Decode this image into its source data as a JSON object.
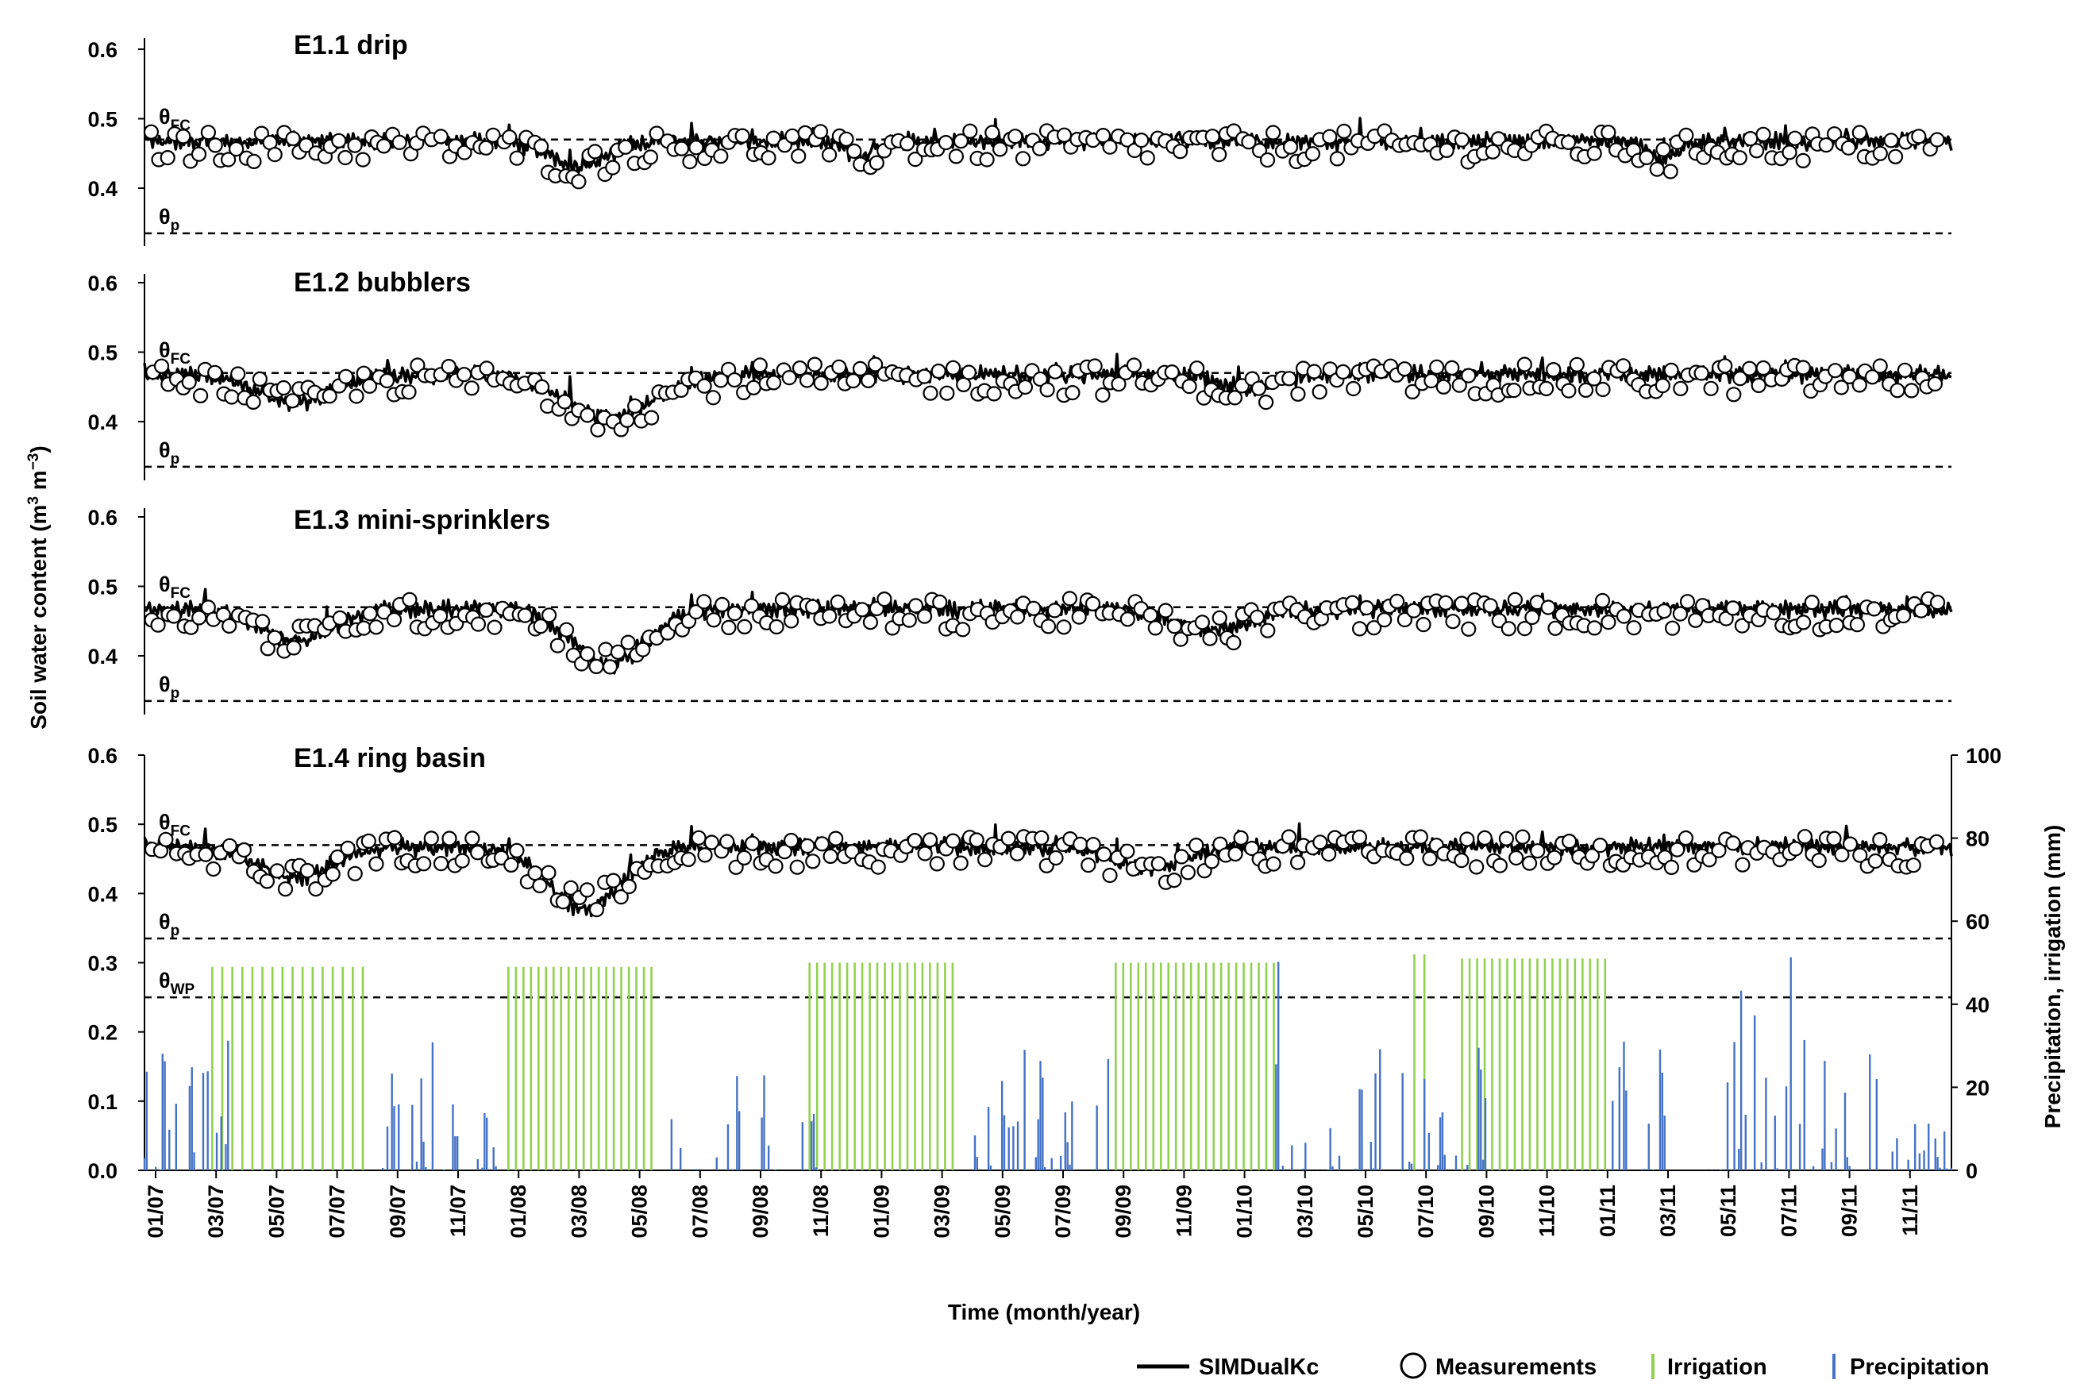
{
  "chart_data": {
    "type": "line",
    "panels": [
      {
        "title": "E1.1 drip",
        "ylim": [
          0.32,
          0.6
        ],
        "yticks": [
          "0.6",
          "0.5",
          "0.4"
        ],
        "levels": [
          {
            "label": "θ",
            "sub": "FC",
            "value": 0.47
          },
          {
            "label": "θ",
            "sub": "p",
            "value": 0.335
          }
        ]
      },
      {
        "title": "E1.2 bubblers",
        "ylim": [
          0.32,
          0.6
        ],
        "yticks": [
          "0.6",
          "0.5",
          "0.4"
        ],
        "levels": [
          {
            "label": "θ",
            "sub": "FC",
            "value": 0.47
          },
          {
            "label": "θ",
            "sub": "p",
            "value": 0.335
          }
        ]
      },
      {
        "title": "E1.3 mini-sprinklers",
        "ylim": [
          0.32,
          0.6
        ],
        "yticks": [
          "0.6",
          "0.5",
          "0.4"
        ],
        "levels": [
          {
            "label": "θ",
            "sub": "FC",
            "value": 0.47
          },
          {
            "label": "θ",
            "sub": "p",
            "value": 0.335
          }
        ]
      },
      {
        "title": "E1.4 ring basin",
        "ylim": [
          0,
          0.6
        ],
        "yticks": [
          "0.6",
          "0.5",
          "0.4",
          "0.3",
          "0.2",
          "0.1",
          "0.0"
        ],
        "y2lim": [
          0,
          100
        ],
        "y2ticks": [
          "100",
          "80",
          "60",
          "40",
          "20",
          "0"
        ],
        "levels": [
          {
            "label": "θ",
            "sub": "FC",
            "value": 0.47
          },
          {
            "label": "θ",
            "sub": "p",
            "value": 0.335
          },
          {
            "label": "θ",
            "sub": "WP",
            "value": 0.25
          }
        ]
      }
    ],
    "x_ticks": [
      "01/07",
      "03/07",
      "05/07",
      "07/07",
      "09/07",
      "11/07",
      "01/08",
      "03/08",
      "05/08",
      "07/08",
      "09/08",
      "11/08",
      "01/09",
      "03/09",
      "05/09",
      "07/09",
      "09/09",
      "11/09",
      "01/10",
      "03/10",
      "05/10",
      "07/10",
      "09/10",
      "11/10",
      "01/11",
      "03/11",
      "05/11",
      "07/11",
      "09/11",
      "11/11"
    ],
    "xlabel": "Time (month/year)",
    "ylabel": "Soil water content (m³ m⁻³)",
    "ylabel_parts": {
      "a": "Soil water content (m",
      "b": "3",
      "c": " m",
      "d": "−3",
      "e": ")"
    },
    "y2label": "Precipitation, irrigation (mm)",
    "x_range_months": [
      0,
      72
    ],
    "series": [
      {
        "name": "SIMDualKc",
        "style": "line",
        "color": "#000000"
      },
      {
        "name": "Measurements",
        "style": "open-circle",
        "color": "#000000"
      },
      {
        "name": "Irrigation",
        "style": "bar",
        "color": "#92d050",
        "units": "mm"
      },
      {
        "name": "Precipitation",
        "style": "bar",
        "color": "#4472c4",
        "units": "mm"
      }
    ],
    "dry_dips": [
      [
        {
          "center": 17.3,
          "width": 1.6,
          "depth": 0.035
        },
        {
          "center": 28.5,
          "width": 0.8,
          "depth": 0.02
        },
        {
          "center": 60.5,
          "width": 0.8,
          "depth": 0.025
        }
      ],
      [
        {
          "center": 6.0,
          "width": 2.0,
          "depth": 0.04
        },
        {
          "center": 18.5,
          "width": 2.5,
          "depth": 0.06
        },
        {
          "center": 44.0,
          "width": 1.5,
          "depth": 0.02
        }
      ],
      [
        {
          "center": 6.0,
          "width": 2.0,
          "depth": 0.045
        },
        {
          "center": 18.5,
          "width": 2.0,
          "depth": 0.08
        },
        {
          "center": 42.5,
          "width": 2.0,
          "depth": 0.03
        }
      ],
      [
        {
          "center": 6.0,
          "width": 2.0,
          "depth": 0.045
        },
        {
          "center": 17.5,
          "width": 2.0,
          "depth": 0.09
        },
        {
          "center": 40.0,
          "width": 2.0,
          "depth": 0.03
        }
      ]
    ],
    "irrigation_periods": [
      {
        "start": 2.7,
        "end": 9.0,
        "interval": 0.4,
        "amount": 49
      },
      {
        "start": 14.5,
        "end": 20.5,
        "interval": 0.3,
        "amount": 49
      },
      {
        "start": 26.5,
        "end": 32.5,
        "interval": 0.3,
        "amount": 50
      },
      {
        "start": 38.7,
        "end": 45.0,
        "interval": 0.3,
        "amount": 50
      },
      {
        "start": 50.6,
        "end": 51.0,
        "interval": 0.4,
        "amount": 52
      },
      {
        "start": 52.5,
        "end": 58.2,
        "interval": 0.3,
        "amount": 51
      }
    ],
    "legend": {
      "placement": "bottom-right"
    }
  }
}
